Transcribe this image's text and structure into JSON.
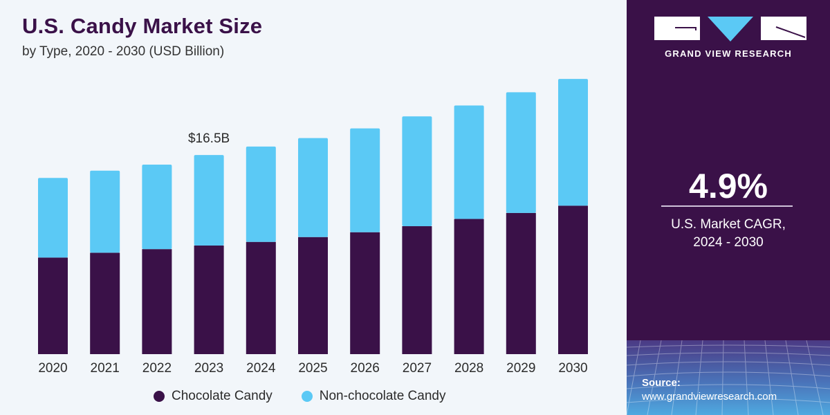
{
  "header": {
    "title": "U.S. Candy Market Size",
    "subtitle": "by Type, 2020 - 2030 (USD Billion)"
  },
  "colors": {
    "chocolate": "#3a1148",
    "non_chocolate": "#5bc9f5",
    "panel": "#3a1148",
    "title": "#3a1148"
  },
  "chart_data": {
    "type": "bar",
    "stacked": true,
    "title": "U.S. Candy Market Size",
    "subtitle": "by Type, 2020 - 2030 (USD Billion)",
    "xlabel": "",
    "ylabel": "USD Billion",
    "ylim": [
      0,
      24
    ],
    "grid": false,
    "legend_position": "bottom-center",
    "categories": [
      "2020",
      "2021",
      "2022",
      "2023",
      "2024",
      "2025",
      "2026",
      "2027",
      "2028",
      "2029",
      "2030"
    ],
    "series": [
      {
        "name": "Chocolate Candy",
        "color": "#3a1148",
        "values": [
          8.0,
          8.4,
          8.7,
          9.0,
          9.3,
          9.7,
          10.1,
          10.6,
          11.2,
          11.7,
          12.3
        ]
      },
      {
        "name": "Non-chocolate Candy",
        "color": "#5bc9f5",
        "values": [
          6.6,
          6.8,
          7.0,
          7.5,
          7.9,
          8.2,
          8.6,
          9.1,
          9.4,
          10.0,
          10.5
        ]
      }
    ],
    "annotations": [
      {
        "category": "2023",
        "text": "$16.5B"
      }
    ]
  },
  "legend": {
    "items": [
      {
        "label": "Chocolate Candy",
        "color": "#3a1148"
      },
      {
        "label": "Non-chocolate Candy",
        "color": "#5bc9f5"
      }
    ]
  },
  "panel": {
    "brand": "GRAND VIEW RESEARCH",
    "cagr_value": "4.9%",
    "cagr_label_line1": "U.S. Market CAGR,",
    "cagr_label_line2": "2024 - 2030",
    "source_label": "Source:",
    "source_url": "www.grandviewresearch.com"
  }
}
